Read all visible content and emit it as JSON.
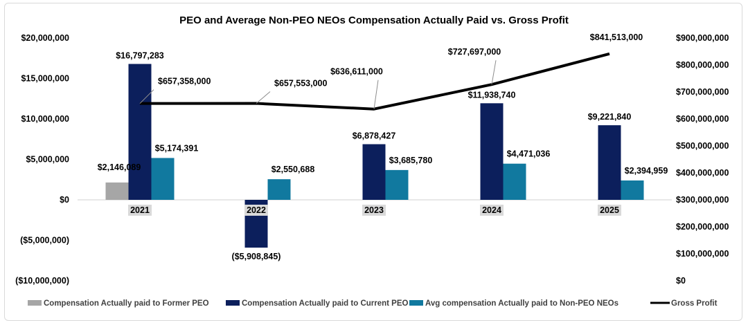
{
  "chart_data": {
    "type": "bar",
    "title": "PEO and Average Non-PEO NEOs Compensation Actually Paid vs. Gross Profit",
    "categories": [
      "2021",
      "2022",
      "2023",
      "2024",
      "2025"
    ],
    "left_axis": {
      "ylim": [
        -10000000,
        20000000
      ],
      "ticks": [
        20000000,
        15000000,
        10000000,
        5000000,
        0,
        -5000000,
        -10000000
      ],
      "tick_labels": [
        "$20,000,000",
        "$15,000,000",
        "$10,000,000",
        "$5,000,000",
        "$0",
        "($5,000,000)",
        "($10,000,000)"
      ]
    },
    "right_axis": {
      "ylim": [
        0,
        900000000
      ],
      "ticks": [
        900000000,
        800000000,
        700000000,
        600000000,
        500000000,
        400000000,
        300000000,
        200000000,
        100000000,
        0
      ],
      "tick_labels": [
        "$900,000,000",
        "$800,000,000",
        "$700,000,000",
        "$600,000,000",
        "$500,000,000",
        "$400,000,000",
        "$300,000,000",
        "$200,000,000",
        "$100,000,000",
        "$0"
      ]
    },
    "series": [
      {
        "name": "Compensation Actually paid to Former PEO",
        "kind": "bar",
        "axis": "left",
        "color": "#a6a6a6",
        "values": [
          2146089,
          null,
          null,
          null,
          null
        ],
        "labels": [
          "$2,146,089",
          "",
          "",
          "",
          ""
        ]
      },
      {
        "name": "Compensation Actually paid to Current PEO",
        "kind": "bar",
        "axis": "left",
        "color": "#0c1f5c",
        "values": [
          16797283,
          -5908845,
          6878427,
          11938740,
          9221840
        ],
        "labels": [
          "$16,797,283",
          "($5,908,845)",
          "$6,878,427",
          "$11,938,740",
          "$9,221,840"
        ]
      },
      {
        "name": "Avg compensation Actually paid to Non-PEO NEOs",
        "kind": "bar",
        "axis": "left",
        "color": "#11799f",
        "values": [
          5174391,
          2550688,
          3685780,
          4471036,
          2394959
        ],
        "labels": [
          "$5,174,391",
          "$2,550,688",
          "$3,685,780",
          "$4,471,036",
          "$2,394,959"
        ]
      },
      {
        "name": "Gross Profit",
        "kind": "line",
        "axis": "right",
        "color": "#000000",
        "values": [
          657358000,
          657553000,
          636611000,
          727697000,
          841513000
        ],
        "labels": [
          "$657,358,000",
          "$657,553,000",
          "$636,611,000",
          "$727,697,000",
          "$841,513,000"
        ]
      }
    ],
    "negative_color": "#e00000",
    "legend_position": "bottom",
    "grid": false
  }
}
